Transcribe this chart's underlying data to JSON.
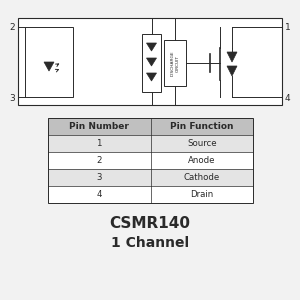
{
  "bg_color": "#f2f2f2",
  "white": "#ffffff",
  "black": "#2a2a2a",
  "gray_header": "#c0c0c0",
  "gray_row": "#e4e4e4",
  "title": "CSMR140",
  "subtitle": "1 Channel",
  "pin_numbers": [
    "Pin Number",
    "1",
    "2",
    "3",
    "4"
  ],
  "pin_functions": [
    "Pin Function",
    "Source",
    "Anode",
    "Cathode",
    "Drain"
  ],
  "corner_labels": [
    "2",
    "1",
    "3",
    "4"
  ]
}
